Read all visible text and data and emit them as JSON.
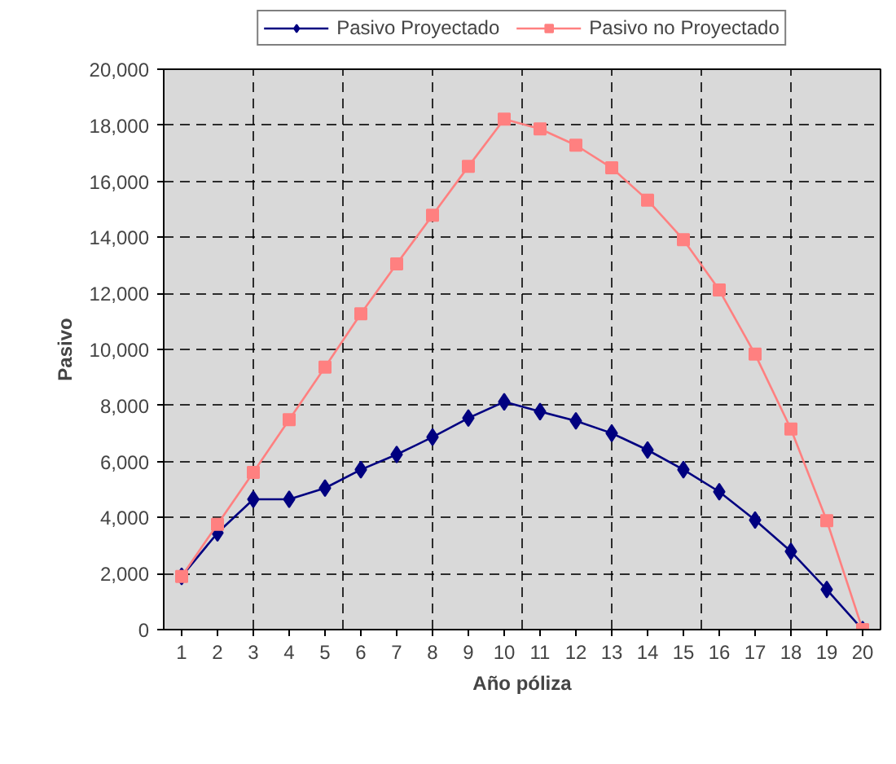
{
  "chart_data": {
    "type": "line",
    "xlabel": "Año póliza",
    "ylabel": "Pasivo",
    "x": [
      1,
      2,
      3,
      4,
      5,
      6,
      7,
      8,
      9,
      10,
      11,
      12,
      13,
      14,
      15,
      16,
      17,
      18,
      19,
      20
    ],
    "xlim": [
      0.5,
      20.5
    ],
    "xticks": [
      1,
      2,
      3,
      4,
      5,
      6,
      7,
      8,
      9,
      10,
      11,
      12,
      13,
      14,
      15,
      16,
      17,
      18,
      19,
      20
    ],
    "ylim": [
      0,
      20000
    ],
    "yticks": [
      {
        "value": 0,
        "label": "0"
      },
      {
        "value": 2000,
        "label": "2,000"
      },
      {
        "value": 4000,
        "label": "4,000"
      },
      {
        "value": 6000,
        "label": "6,000"
      },
      {
        "value": 8000,
        "label": "8,000"
      },
      {
        "value": 10000,
        "label": "10,000"
      },
      {
        "value": 12000,
        "label": "12,000"
      },
      {
        "value": 14000,
        "label": "14,000"
      },
      {
        "value": 16000,
        "label": "16,000"
      },
      {
        "value": 18000,
        "label": "18,000"
      },
      {
        "value": 20000,
        "label": "20,000"
      }
    ],
    "grid": true,
    "legend": "top",
    "line_style": "solid",
    "series": [
      {
        "name": "Pasivo Proyectado",
        "color": "#000080",
        "marker": "diamond",
        "values": [
          1900,
          3450,
          4650,
          4650,
          5050,
          5710,
          6250,
          6870,
          7550,
          8130,
          7780,
          7450,
          7010,
          6410,
          5710,
          4920,
          3910,
          2790,
          1430,
          0
        ]
      },
      {
        "name": "Pasivo no Proyectado",
        "color": "#ff8080",
        "marker": "square",
        "values": [
          1900,
          3760,
          5610,
          7490,
          9370,
          11270,
          13050,
          14790,
          16530,
          18220,
          17870,
          17290,
          16480,
          15330,
          13920,
          12120,
          9830,
          7160,
          3890,
          0
        ]
      }
    ]
  }
}
